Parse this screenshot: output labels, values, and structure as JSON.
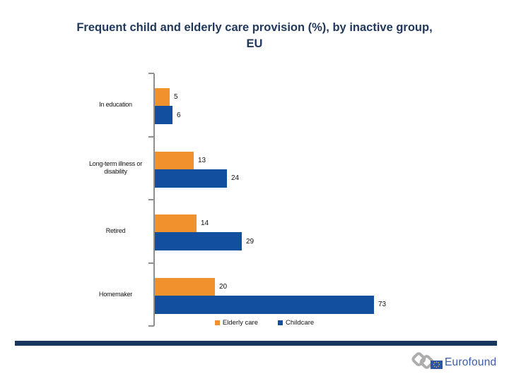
{
  "slide": {
    "title_line1": "Frequent child and elderly care provision (%), by inactive group,",
    "title_line2": "EU",
    "title_color": "#22395E",
    "divider_color": "#17375E",
    "background": "#ffffff"
  },
  "chart_data": {
    "type": "bar",
    "orientation": "horizontal",
    "title": "Frequent child and elderly care provision (%), by inactive group, EU",
    "categories": [
      "In education",
      "Long-term illness or disability",
      "Retired",
      "Homemaker"
    ],
    "series": [
      {
        "name": "Elderly care",
        "color": "#F0912D",
        "values": [
          5,
          13,
          14,
          20
        ]
      },
      {
        "name": "Childcare",
        "color": "#124F9E",
        "values": [
          6,
          24,
          29,
          73
        ]
      }
    ],
    "value_labels": [
      [
        5,
        13,
        14,
        20
      ],
      [
        6,
        24,
        29,
        73
      ]
    ],
    "xlim": [
      0,
      80
    ],
    "grid": false,
    "axis_color": "#8f8f8f",
    "legend_position": "bottom"
  },
  "legend": {
    "items": [
      {
        "label": "Elderly care",
        "color": "#F0912D"
      },
      {
        "label": "Childcare",
        "color": "#124F9E"
      }
    ]
  },
  "footer": {
    "logo_text": "Eurofound",
    "logo_text_color": "#3A5CA8",
    "logo_mark_icon": "chain-links-icon",
    "eu_flag_icon": "eu-flag-icon"
  }
}
